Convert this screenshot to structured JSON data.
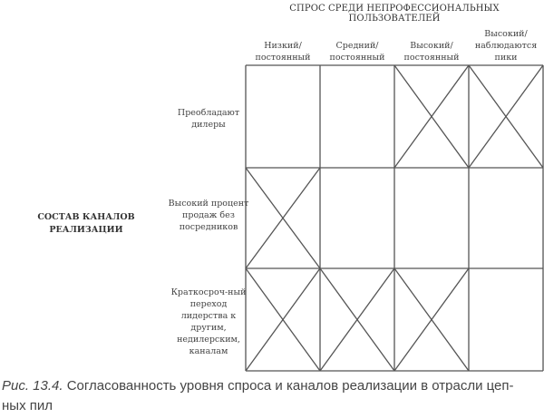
{
  "column_group_title": "СПРОС СРЕДИ НЕПРОФЕССИОНАЛЬНЫХ ПОЛЬЗОВАТЕЛЕЙ",
  "columns": [
    "Низкий/ постоянный",
    "Средний/ постоянный",
    "Высокий/ постоянный",
    "Высокий/ наблюдаются пики"
  ],
  "row_group_title": "СОСТАВ КАНАЛОВ РЕАЛИЗАЦИИ",
  "rows": [
    "Преобладают дилеры",
    "Высокий процент продаж без посредников",
    "Краткосроч-ный переход лидерства к другим, недилерским, каналам"
  ],
  "crossed_cells": [
    [
      false,
      false,
      true,
      true
    ],
    [
      true,
      false,
      false,
      false
    ],
    [
      true,
      true,
      true,
      false
    ]
  ],
  "caption": {
    "label": "Рис. 13.4.",
    "text": " Согласованность уровня спроса и каналов реализации в отрасли цеп-ных пил"
  },
  "line_color": "#555555"
}
